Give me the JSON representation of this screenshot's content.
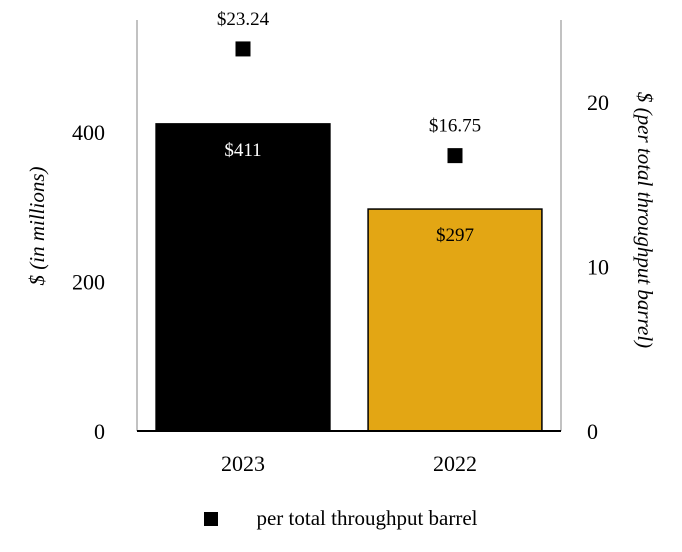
{
  "chart_data": {
    "type": "bar",
    "categories": [
      "2023",
      "2022"
    ],
    "bar_values": [
      411,
      297
    ],
    "bar_labels": [
      "$411",
      "$297"
    ],
    "bar_colors": [
      "#000000",
      "#E3A614"
    ],
    "bar_label_colors": [
      "#ffffff",
      "#000000"
    ],
    "line_series": {
      "name": "per total throughput barrel",
      "type": "scatter",
      "values": [
        23.24,
        16.75
      ],
      "labels": [
        "$23.24",
        "$16.75"
      ],
      "color": "#000000"
    },
    "ylabel_left": "$ (in millions)",
    "ylabel_right": "$ (per total throughput barrel)",
    "ylim_left": [
      0,
      550
    ],
    "ylim_right": [
      0,
      25
    ],
    "yticks_left": [
      0,
      200,
      400
    ],
    "yticks_right": [
      0,
      10,
      20
    ],
    "grid": false,
    "legend_position": "bottom"
  }
}
